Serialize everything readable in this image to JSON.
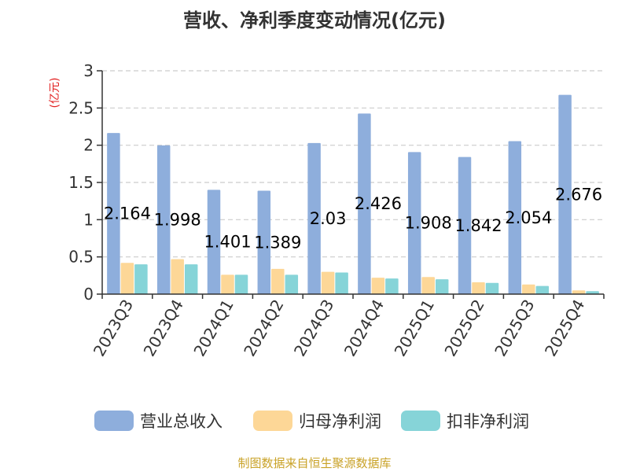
{
  "chart_data": {
    "type": "bar",
    "title": "营收、净利季度变动情况(亿元)",
    "ylabel": "(亿元)",
    "xlabel": "",
    "ylim": [
      0,
      3
    ],
    "yticks": [
      "0",
      "0.5",
      "1",
      "1.5",
      "2",
      "2.5",
      "3"
    ],
    "grid": true,
    "legend_position": "bottom",
    "categories": [
      "2023Q3",
      "2023Q4",
      "2024Q1",
      "2024Q2",
      "2024Q3",
      "2024Q4",
      "2025Q1",
      "2025Q2",
      "2025Q3",
      "2025Q4"
    ],
    "series": [
      {
        "name": "营业总收入",
        "color": "#8eaedc",
        "values": [
          2.164,
          1.998,
          1.401,
          1.389,
          2.03,
          2.426,
          1.908,
          1.842,
          2.054,
          2.676
        ],
        "labels": [
          "2.164",
          "1.998",
          "1.401",
          "1.389",
          "2.03",
          "2.426",
          "1.908",
          "1.842",
          "2.054",
          "2.676"
        ]
      },
      {
        "name": "归母净利润",
        "color": "#fdd797",
        "values": [
          0.42,
          0.47,
          0.26,
          0.34,
          0.3,
          0.22,
          0.23,
          0.16,
          0.13,
          0.05
        ]
      },
      {
        "name": "扣非净利润",
        "color": "#86d4d8",
        "values": [
          0.4,
          0.4,
          0.26,
          0.26,
          0.29,
          0.21,
          0.2,
          0.15,
          0.11,
          0.04
        ]
      }
    ]
  },
  "source_text": "制图数据来自恒生聚源数据库"
}
